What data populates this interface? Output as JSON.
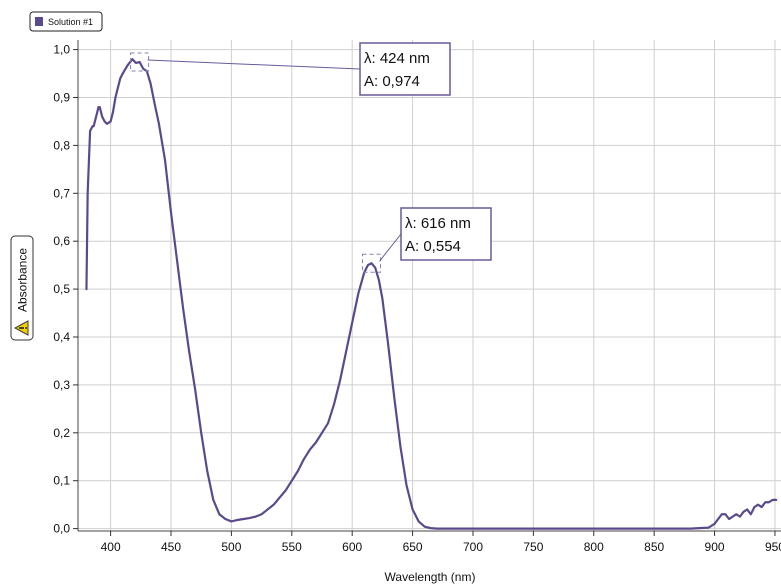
{
  "legend": {
    "label": "Solution #1"
  },
  "colors": {
    "series": "#5b4a8b",
    "grid": "#cfcfcf",
    "callout_border": "#6a5a9a",
    "warning_fill": "#f5d000"
  },
  "icons": {
    "ylabel_badge": "warning-triangle-icon"
  },
  "chart_data": {
    "type": "line",
    "xlabel": "Wavelength (nm)",
    "ylabel": "Absorbance",
    "xlim": [
      373,
      955
    ],
    "ylim": [
      -0.005,
      1.02
    ],
    "x_ticks": [
      400,
      450,
      500,
      550,
      600,
      650,
      700,
      750,
      800,
      850,
      900,
      950
    ],
    "x_tick_labels": [
      "400",
      "450",
      "500",
      "550",
      "600",
      "650",
      "700",
      "750",
      "800",
      "850",
      "900",
      "950"
    ],
    "y_ticks": [
      0,
      0.1,
      0.2,
      0.3,
      0.4,
      0.5,
      0.6,
      0.7,
      0.8,
      0.9,
      1.0
    ],
    "y_tick_labels": [
      "0,0",
      "0,1",
      "0,2",
      "0,3",
      "0,4",
      "0,5",
      "0,6",
      "0,7",
      "0,8",
      "0,9",
      "1,0"
    ],
    "grid": true,
    "legend_position": "top-left",
    "series": [
      {
        "name": "Solution #1",
        "x": [
          380,
          381,
          383,
          385,
          386,
          388,
          390,
          391,
          393,
          395,
          397,
          400,
          402,
          404,
          406,
          408,
          410,
          414,
          418,
          421,
          424,
          427,
          430,
          433,
          437,
          440,
          445,
          450,
          455,
          460,
          465,
          470,
          475,
          480,
          485,
          490,
          495,
          500,
          505,
          510,
          515,
          520,
          525,
          530,
          535,
          540,
          545,
          550,
          555,
          560,
          565,
          570,
          575,
          580,
          585,
          590,
          595,
          600,
          605,
          610,
          613,
          616,
          619,
          622,
          625,
          630,
          635,
          640,
          645,
          650,
          655,
          660,
          665,
          670,
          675,
          680,
          700,
          750,
          800,
          850,
          880,
          895,
          900,
          903,
          906,
          909,
          912,
          915,
          918,
          921,
          924,
          927,
          930,
          933,
          936,
          939,
          942,
          945,
          948,
          951
        ],
        "y": [
          0.5,
          0.7,
          0.83,
          0.84,
          0.84,
          0.86,
          0.88,
          0.88,
          0.86,
          0.85,
          0.845,
          0.85,
          0.87,
          0.9,
          0.92,
          0.94,
          0.95,
          0.967,
          0.98,
          0.972,
          0.974,
          0.96,
          0.955,
          0.93,
          0.88,
          0.845,
          0.77,
          0.66,
          0.56,
          0.46,
          0.37,
          0.29,
          0.2,
          0.12,
          0.06,
          0.03,
          0.02,
          0.015,
          0.018,
          0.02,
          0.022,
          0.025,
          0.03,
          0.04,
          0.05,
          0.065,
          0.08,
          0.1,
          0.12,
          0.145,
          0.165,
          0.18,
          0.2,
          0.22,
          0.26,
          0.31,
          0.37,
          0.43,
          0.49,
          0.535,
          0.55,
          0.554,
          0.545,
          0.52,
          0.48,
          0.38,
          0.27,
          0.17,
          0.09,
          0.04,
          0.015,
          0.004,
          0.001,
          0.0,
          0.0,
          0.0,
          0.0,
          0.0,
          0.0,
          0.0,
          0.0,
          0.002,
          0.01,
          0.02,
          0.03,
          0.03,
          0.02,
          0.025,
          0.03,
          0.025,
          0.035,
          0.04,
          0.03,
          0.045,
          0.05,
          0.045,
          0.055,
          0.055,
          0.06,
          0.06
        ]
      }
    ],
    "annotations": [
      {
        "x": 424,
        "y": 0.974,
        "line1": "λ: 424 nm",
        "line2": "A: 0,974"
      },
      {
        "x": 616,
        "y": 0.554,
        "line1": "λ: 616 nm",
        "line2": "A: 0,554"
      }
    ]
  }
}
